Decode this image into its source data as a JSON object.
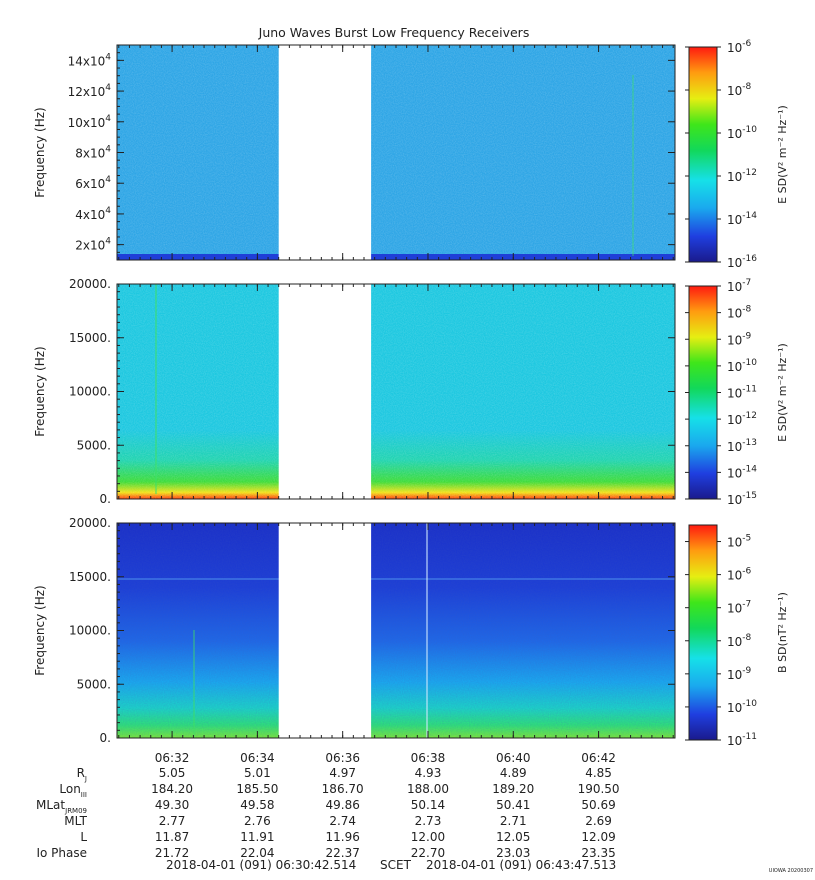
{
  "title": "Juno Waves Burst Low Frequency Receivers",
  "chart_data": [
    {
      "type": "heatmap",
      "panel": "upper",
      "ylabel": "Frequency (Hz)",
      "ylim": [
        10000,
        150000
      ],
      "y_ticks": [
        {
          "value": 20000,
          "mant": "2x10",
          "exp": "4"
        },
        {
          "value": 40000,
          "mant": "4x10",
          "exp": "4"
        },
        {
          "value": 60000,
          "mant": "6x10",
          "exp": "4"
        },
        {
          "value": 80000,
          "mant": "8x10",
          "exp": "4"
        },
        {
          "value": 100000,
          "mant": "10x10",
          "exp": "4"
        },
        {
          "value": 120000,
          "mant": "12x10",
          "exp": "4"
        },
        {
          "value": 140000,
          "mant": "14x10",
          "exp": "4"
        }
      ],
      "colorbar": {
        "label": "E SD(V² m⁻² Hz⁻¹)",
        "scale": "log",
        "range_exp": [
          -16,
          -6
        ],
        "tick_exps": [
          "-6",
          "-8",
          "-10",
          "-12",
          "-14",
          "-16"
        ]
      },
      "background_color": "#2fa6e6",
      "data_gap": [
        "06:34:30",
        "06:36:40"
      ]
    },
    {
      "type": "heatmap",
      "panel": "middle",
      "ylabel": "Frequency (Hz)",
      "ylim": [
        0,
        20000
      ],
      "y_ticks": [
        "0.",
        "5000.",
        "10000.",
        "15000.",
        "20000."
      ],
      "colorbar": {
        "label": "E SD(V² m⁻² Hz⁻¹)",
        "scale": "log",
        "range_exp": [
          -15,
          -7
        ],
        "tick_exps": [
          "-7",
          "-8",
          "-9",
          "-10",
          "-11",
          "-12",
          "-13",
          "-14",
          "-15"
        ]
      },
      "background_color": "#1ec8e0",
      "data_gap": [
        "06:34:30",
        "06:36:40"
      ]
    },
    {
      "type": "heatmap",
      "panel": "lower",
      "ylabel": "Frequency (Hz)",
      "ylim": [
        0,
        20000
      ],
      "y_ticks": [
        "0.",
        "5000.",
        "10000.",
        "15000.",
        "20000."
      ],
      "colorbar": {
        "label": "B SD(nT² Hz⁻¹)",
        "scale": "log",
        "range_exp": [
          -11,
          -4.5
        ],
        "tick_exps": [
          "-5",
          "-6",
          "-7",
          "-8",
          "-9",
          "-10",
          "-11"
        ]
      },
      "background_color": "#1d3fd6",
      "data_gap": [
        "06:34:30",
        "06:36:40"
      ]
    }
  ],
  "x_axis": {
    "ticks": [
      "06:32",
      "06:34",
      "06:36",
      "06:38",
      "06:40",
      "06:42"
    ],
    "start": "06:30:42.514",
    "end": "06:43:47.513"
  },
  "ephemeris": {
    "rows": [
      {
        "label": "R",
        "sub": "J",
        "values": [
          "5.05",
          "5.01",
          "4.97",
          "4.93",
          "4.89",
          "4.85"
        ]
      },
      {
        "label": "Lon",
        "sub": "III",
        "values": [
          "184.20",
          "185.50",
          "186.70",
          "188.00",
          "189.20",
          "190.50"
        ]
      },
      {
        "label": "MLat",
        "sub": "JRM09",
        "values": [
          "49.30",
          "49.58",
          "49.86",
          "50.14",
          "50.41",
          "50.69"
        ]
      },
      {
        "label": "MLT",
        "sub": "",
        "values": [
          "2.77",
          "2.76",
          "2.74",
          "2.73",
          "2.71",
          "2.69"
        ]
      },
      {
        "label": "L",
        "sub": "",
        "values": [
          "11.87",
          "11.91",
          "11.96",
          "12.00",
          "12.05",
          "12.09"
        ]
      },
      {
        "label": "Io Phase",
        "sub": "",
        "values": [
          "21.72",
          "22.04",
          "22.37",
          "22.70",
          "23.03",
          "23.35"
        ]
      }
    ]
  },
  "footer": {
    "start": "2018-04-01 (091) 06:30:42.514",
    "scet": "SCET",
    "end": "2018-04-01 (091) 06:43:47.513"
  },
  "stamp": "UIOWA 20200307"
}
